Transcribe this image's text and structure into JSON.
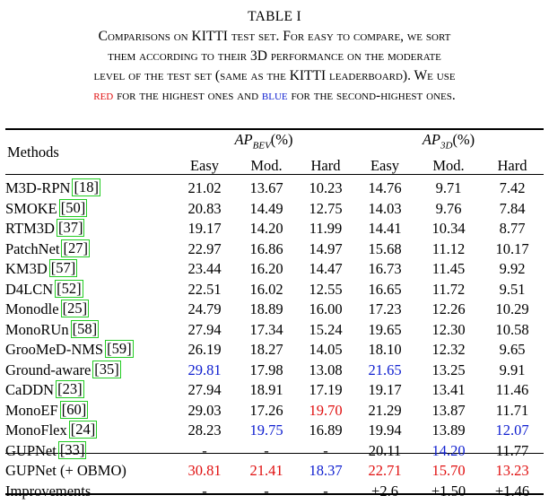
{
  "table_title": "TABLE I",
  "caption": {
    "line1": "Comparisons on KITTI test set. For easy to compare, we sort",
    "line2": "them according to their 3D performance on the moderate",
    "line3": "level of the test set (same as the KITTI leaderboard). We use",
    "red_word": "red",
    "line4_mid": " for the highest ones and ",
    "blue_word": "blue",
    "line4_end": " for the second-highest ones."
  },
  "header": {
    "methods": "Methods",
    "bev_main": "AP",
    "bev_sub": "BEV",
    "bev_pct": "(%)",
    "td_main": "AP",
    "td_sub": "3D",
    "td_pct": "(%)",
    "cols": [
      "Easy",
      "Mod.",
      "Hard",
      "Easy",
      "Mod.",
      "Hard"
    ]
  },
  "colors": {
    "red": "#e01010",
    "blue": "#1020d0",
    "cite_box": "#22cc22"
  },
  "rows": [
    {
      "name": "M3D-RPN",
      "cite": "18",
      "vals": [
        "21.02",
        "13.67",
        "10.23",
        "14.76",
        "9.71",
        "7.42"
      ],
      "hl": [
        "",
        "",
        "",
        "",
        "",
        ""
      ]
    },
    {
      "name": "SMOKE",
      "cite": "50",
      "vals": [
        "20.83",
        "14.49",
        "12.75",
        "14.03",
        "9.76",
        "7.84"
      ],
      "hl": [
        "",
        "",
        "",
        "",
        "",
        ""
      ]
    },
    {
      "name": "RTM3D",
      "cite": "37",
      "vals": [
        "19.17",
        "14.20",
        "11.99",
        "14.41",
        "10.34",
        "8.77"
      ],
      "hl": [
        "",
        "",
        "",
        "",
        "",
        ""
      ]
    },
    {
      "name": "PatchNet",
      "cite": "27",
      "vals": [
        "22.97",
        "16.86",
        "14.97",
        "15.68",
        "11.12",
        "10.17"
      ],
      "hl": [
        "",
        "",
        "",
        "",
        "",
        ""
      ]
    },
    {
      "name": "KM3D",
      "cite": "57",
      "vals": [
        "23.44",
        "16.20",
        "14.47",
        "16.73",
        "11.45",
        "9.92"
      ],
      "hl": [
        "",
        "",
        "",
        "",
        "",
        ""
      ]
    },
    {
      "name": "D4LCN",
      "cite": "52",
      "vals": [
        "22.51",
        "16.02",
        "12.55",
        "16.65",
        "11.72",
        "9.51"
      ],
      "hl": [
        "",
        "",
        "",
        "",
        "",
        ""
      ]
    },
    {
      "name": "Monodle",
      "cite": "25",
      "vals": [
        "24.79",
        "18.89",
        "16.00",
        "17.23",
        "12.26",
        "10.29"
      ],
      "hl": [
        "",
        "",
        "",
        "",
        "",
        ""
      ]
    },
    {
      "name": "MonoRUn",
      "cite": "58",
      "vals": [
        "27.94",
        "17.34",
        "15.24",
        "19.65",
        "12.30",
        "10.58"
      ],
      "hl": [
        "",
        "",
        "",
        "",
        "",
        ""
      ]
    },
    {
      "name": "GrooMeD-NMS",
      "cite": "59",
      "vals": [
        "26.19",
        "18.27",
        "14.05",
        "18.10",
        "12.32",
        "9.65"
      ],
      "hl": [
        "",
        "",
        "",
        "",
        "",
        ""
      ]
    },
    {
      "name": "Ground-aware",
      "cite": "35",
      "vals": [
        "29.81",
        "17.98",
        "13.08",
        "21.65",
        "13.25",
        "9.91"
      ],
      "hl": [
        "blue",
        "",
        "",
        "blue",
        "",
        ""
      ]
    },
    {
      "name": "CaDDN",
      "cite": "23",
      "vals": [
        "27.94",
        "18.91",
        "17.19",
        "19.17",
        "13.41",
        "11.46"
      ],
      "hl": [
        "",
        "",
        "",
        "",
        "",
        ""
      ]
    },
    {
      "name": "MonoEF",
      "cite": "60",
      "vals": [
        "29.03",
        "17.26",
        "19.70",
        "21.29",
        "13.87",
        "11.71"
      ],
      "hl": [
        "",
        "",
        "red",
        "",
        "",
        ""
      ]
    },
    {
      "name": "MonoFlex",
      "cite": "24",
      "vals": [
        "28.23",
        "19.75",
        "16.89",
        "19.94",
        "13.89",
        "12.07"
      ],
      "hl": [
        "",
        "blue",
        "",
        "",
        "",
        "blue"
      ]
    },
    {
      "name": "GUPNet",
      "cite": "33",
      "vals": [
        "-",
        "-",
        "-",
        "20.11",
        "14.20",
        "11.77"
      ],
      "hl": [
        "",
        "",
        "",
        "",
        "blue",
        ""
      ]
    },
    {
      "name": "GUPNet (+ OBMO)",
      "cite": "",
      "vals": [
        "30.81",
        "21.41",
        "18.37",
        "22.71",
        "15.70",
        "13.23"
      ],
      "hl": [
        "red",
        "red",
        "blue",
        "red",
        "red",
        "red"
      ]
    },
    {
      "name": "Improvements",
      "cite": "",
      "vals": [
        "-",
        "-",
        "-",
        "+2.6",
        "+1.50",
        "+1.46"
      ],
      "hl": [
        "",
        "",
        "",
        "",
        "",
        ""
      ]
    }
  ]
}
